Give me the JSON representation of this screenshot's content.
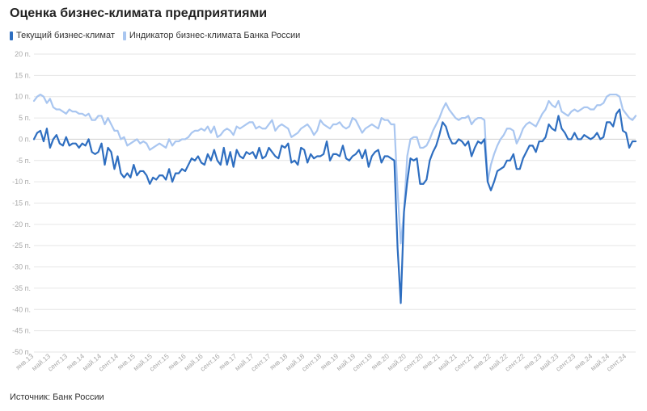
{
  "title": "Оценка бизнес-климата предприятиями",
  "source": "Источник: Банк России",
  "colors": {
    "current": "#2e6ec0",
    "indicator": "#a9c6f0",
    "grid": "#e6e6e6"
  },
  "chart_data": {
    "type": "line",
    "title": "Оценка бизнес-климата предприятиями",
    "ylim": [
      -50,
      20
    ],
    "yticks": [
      20,
      15,
      10,
      5,
      0,
      -5,
      -10,
      -15,
      -20,
      -25,
      -30,
      -35,
      -40,
      -45,
      -50
    ],
    "ytick_labels": [
      "20 п.",
      "15 п.",
      "10 п.",
      "5 п.",
      "0 п.",
      "-5 п.",
      "-10 п.",
      "-15 п.",
      "-20 п.",
      "-25 п.",
      "-30 п.",
      "-35 п.",
      "-40 п.",
      "-45 п.",
      "-50 п."
    ],
    "grid": true,
    "legend": "top-left",
    "x_labels": [
      "янв.13",
      "май.13",
      "сент.13",
      "янв.14",
      "май.14",
      "сент.14",
      "янв.15",
      "май.15",
      "сент.15",
      "янв.16",
      "май.16",
      "сент.16",
      "янв.17",
      "май.17",
      "сент.17",
      "янв.18",
      "май.18",
      "сент.18",
      "янв.19",
      "май.19",
      "сент.19",
      "янв.20",
      "май.20",
      "сент.20",
      "янв.21",
      "май.21",
      "сент.21",
      "янв.22",
      "май.22",
      "сент.22",
      "янв.23",
      "май.23",
      "сент.23",
      "янв.24",
      "май.24",
      "сент.24"
    ],
    "series": [
      {
        "name": "Текущий бизнес-климат",
        "values": [
          0.0,
          1.5,
          2.0,
          -0.5,
          2.5,
          -2.0,
          0.0,
          1.0,
          -1.0,
          -1.5,
          0.5,
          -1.5,
          -1.0,
          -1.0,
          -2.0,
          -1.0,
          -1.5,
          0.0,
          -3.0,
          -3.5,
          -3.0,
          -1.0,
          -6.0,
          -2.0,
          -3.0,
          -7.0,
          -4.0,
          -8.0,
          -9.0,
          -8.0,
          -9.0,
          -6.0,
          -8.5,
          -7.5,
          -7.5,
          -8.5,
          -10.5,
          -9.0,
          -9.5,
          -8.5,
          -8.5,
          -9.5,
          -7.0,
          -10.0,
          -8.0,
          -8.0,
          -7.0,
          -7.5,
          -6.0,
          -4.5,
          -5.0,
          -4.0,
          -5.5,
          -6.0,
          -3.5,
          -5.0,
          -2.5,
          -5.0,
          -6.0,
          -2.0,
          -6.0,
          -3.0,
          -6.5,
          -2.5,
          -4.0,
          -4.5,
          -3.0,
          -3.5,
          -3.0,
          -4.5,
          -2.0,
          -4.5,
          -4.0,
          -2.0,
          -3.0,
          -4.0,
          -4.5,
          -1.5,
          -2.0,
          -1.0,
          -5.5,
          -5.0,
          -6.0,
          -2.0,
          -2.5,
          -5.5,
          -3.5,
          -4.5,
          -4.0,
          -4.0,
          -3.5,
          -0.5,
          -5.0,
          -3.5,
          -3.5,
          -4.0,
          -1.5,
          -4.5,
          -5.0,
          -4.0,
          -3.5,
          -2.5,
          -4.5,
          -2.5,
          -6.5,
          -4.0,
          -3.0,
          -2.5,
          -5.5,
          -4.0,
          -4.0,
          -4.5,
          -5.0,
          -25.5,
          -38.5,
          -17.0,
          -10.0,
          -4.5,
          -5.0,
          -4.5,
          -10.5,
          -10.5,
          -9.5,
          -5.0,
          -3.0,
          -1.5,
          1.0,
          4.0,
          3.0,
          0.5,
          -1.0,
          -1.0,
          0.0,
          -0.5,
          -1.5,
          -0.5,
          -4.0,
          -2.0,
          -0.5,
          -1.0,
          0.0,
          -10.0,
          -12.0,
          -10.0,
          -7.5,
          -7.0,
          -6.5,
          -5.0,
          -5.0,
          -3.5,
          -7.0,
          -7.0,
          -4.5,
          -3.0,
          -1.5,
          -1.5,
          -3.0,
          -0.5,
          -0.5,
          0.5,
          3.5,
          2.5,
          2.0,
          5.5,
          2.5,
          1.5,
          0.0,
          0.0,
          1.5,
          0.0,
          0.0,
          1.0,
          0.5,
          0.0,
          0.5,
          1.5,
          0.0,
          0.5,
          4.0,
          4.0,
          3.0,
          6.0,
          7.0,
          2.0,
          1.5,
          -2.0,
          -0.5,
          -0.5
        ]
      },
      {
        "name": "Индикатор бизнес-климата Банка России",
        "values": [
          9.0,
          10.0,
          10.5,
          10.0,
          8.5,
          9.5,
          7.5,
          7.0,
          7.0,
          6.5,
          6.0,
          7.0,
          6.5,
          6.5,
          6.0,
          6.0,
          5.5,
          6.0,
          4.5,
          4.5,
          5.5,
          5.5,
          3.5,
          5.0,
          3.5,
          2.0,
          2.0,
          0.0,
          0.5,
          -1.5,
          -1.0,
          -0.5,
          0.0,
          -1.0,
          -0.5,
          -1.0,
          -2.5,
          -2.0,
          -1.5,
          -1.0,
          -1.5,
          -2.0,
          0.0,
          -1.5,
          -0.5,
          -0.5,
          0.0,
          0.0,
          0.5,
          1.5,
          2.0,
          2.0,
          2.5,
          2.0,
          3.0,
          1.5,
          3.0,
          0.5,
          1.0,
          2.0,
          2.5,
          2.0,
          1.0,
          3.0,
          2.5,
          3.0,
          3.5,
          4.0,
          4.0,
          2.5,
          3.0,
          2.5,
          2.5,
          3.5,
          4.5,
          2.0,
          3.0,
          3.5,
          3.0,
          2.5,
          0.5,
          1.0,
          1.5,
          2.5,
          3.0,
          3.5,
          2.5,
          1.0,
          2.0,
          4.5,
          3.5,
          3.0,
          2.5,
          3.5,
          3.5,
          4.0,
          3.0,
          2.5,
          3.0,
          5.0,
          4.5,
          3.0,
          1.5,
          2.5,
          3.0,
          3.5,
          3.0,
          2.5,
          5.0,
          4.5,
          4.5,
          3.5,
          3.5,
          -12.0,
          -24.5,
          -17.0,
          -4.0,
          0.0,
          0.5,
          0.5,
          -2.0,
          -2.0,
          -1.5,
          0.0,
          2.0,
          3.5,
          5.0,
          7.0,
          8.5,
          7.0,
          6.0,
          5.0,
          4.5,
          5.0,
          5.0,
          5.5,
          3.5,
          4.5,
          5.0,
          5.0,
          4.5,
          -10.0,
          -6.0,
          -3.5,
          -1.5,
          0.0,
          1.0,
          2.5,
          2.5,
          2.0,
          -1.0,
          0.5,
          2.5,
          3.5,
          4.0,
          3.5,
          3.0,
          4.5,
          6.0,
          7.0,
          9.0,
          8.0,
          7.5,
          9.0,
          6.5,
          6.0,
          5.5,
          6.5,
          7.0,
          6.5,
          7.0,
          7.5,
          7.5,
          7.0,
          7.0,
          8.0,
          8.0,
          8.5,
          10.0,
          10.5,
          10.5,
          10.5,
          10.0,
          7.0,
          6.0,
          5.0,
          4.5,
          5.5
        ]
      }
    ]
  }
}
